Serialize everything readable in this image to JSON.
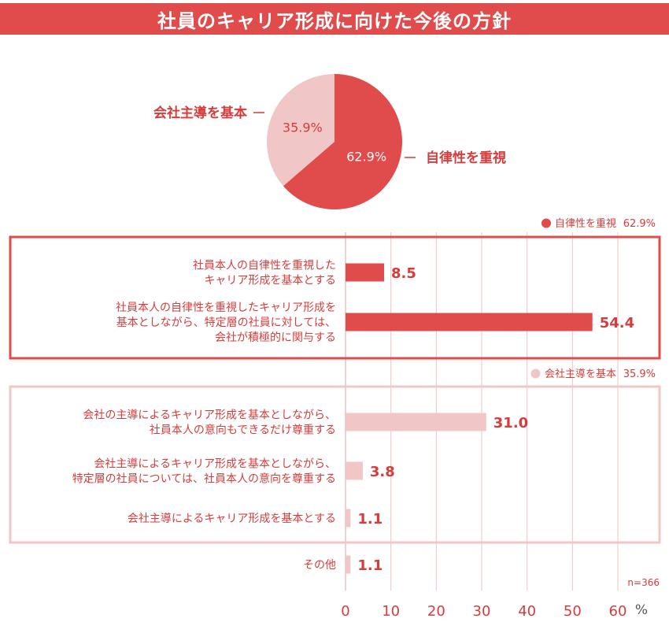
{
  "title": "社員のキャリア形成に向けた今後の方針",
  "colors": {
    "dark": "#e04b4b",
    "light": "#f1c6c6",
    "text": "#d63c3c",
    "grid": "#efc3c3"
  },
  "chart_data": [
    {
      "type": "pie",
      "slices": [
        {
          "label": "自律性を重視",
          "value": 62.9,
          "display": "62.9%",
          "color": "#e04b4b"
        },
        {
          "label": "会社主導を基本",
          "value": 35.9,
          "display": "35.9%",
          "color": "#f1c6c6"
        }
      ]
    },
    {
      "type": "bar",
      "orientation": "horizontal",
      "groups": [
        {
          "legend_label": "自律性を重視",
          "legend_value": "62.9%",
          "color": "#e04b4b"
        },
        {
          "legend_label": "会社主導を基本",
          "legend_value": "35.9%",
          "color": "#f1c6c6"
        }
      ],
      "categories": [
        {
          "lines": [
            "社員本人の自律性を重視した",
            "キャリア形成を基本とする"
          ],
          "value": 8.5,
          "label": "8.5",
          "group": 0
        },
        {
          "lines": [
            "社員本人の自律性を重視したキャリア形成を",
            "基本としながら、特定層の社員に対しては、",
            "会社が積極的に関与する"
          ],
          "value": 54.4,
          "label": "54.4",
          "group": 0
        },
        {
          "lines": [
            "会社の主導によるキャリア形成を基本としながら、",
            "社員本人の意向もできるだけ尊重する"
          ],
          "value": 31.0,
          "label": "31.0",
          "group": 1
        },
        {
          "lines": [
            "会社主導によるキャリア形成を基本としながら、",
            "特定層の社員については、社員本人の意向を尊重する"
          ],
          "value": 3.8,
          "label": "3.8",
          "group": 1
        },
        {
          "lines": [
            "会社主導によるキャリア形成を基本とする"
          ],
          "value": 1.1,
          "label": "1.1",
          "group": 1
        },
        {
          "lines": [
            "その他"
          ],
          "value": 1.1,
          "label": "1.1",
          "group": null
        }
      ],
      "xlim": [
        0,
        60
      ],
      "ticks": [
        "0",
        "10",
        "20",
        "30",
        "40",
        "50",
        "60"
      ],
      "unit": "%",
      "note": "n=366"
    }
  ]
}
